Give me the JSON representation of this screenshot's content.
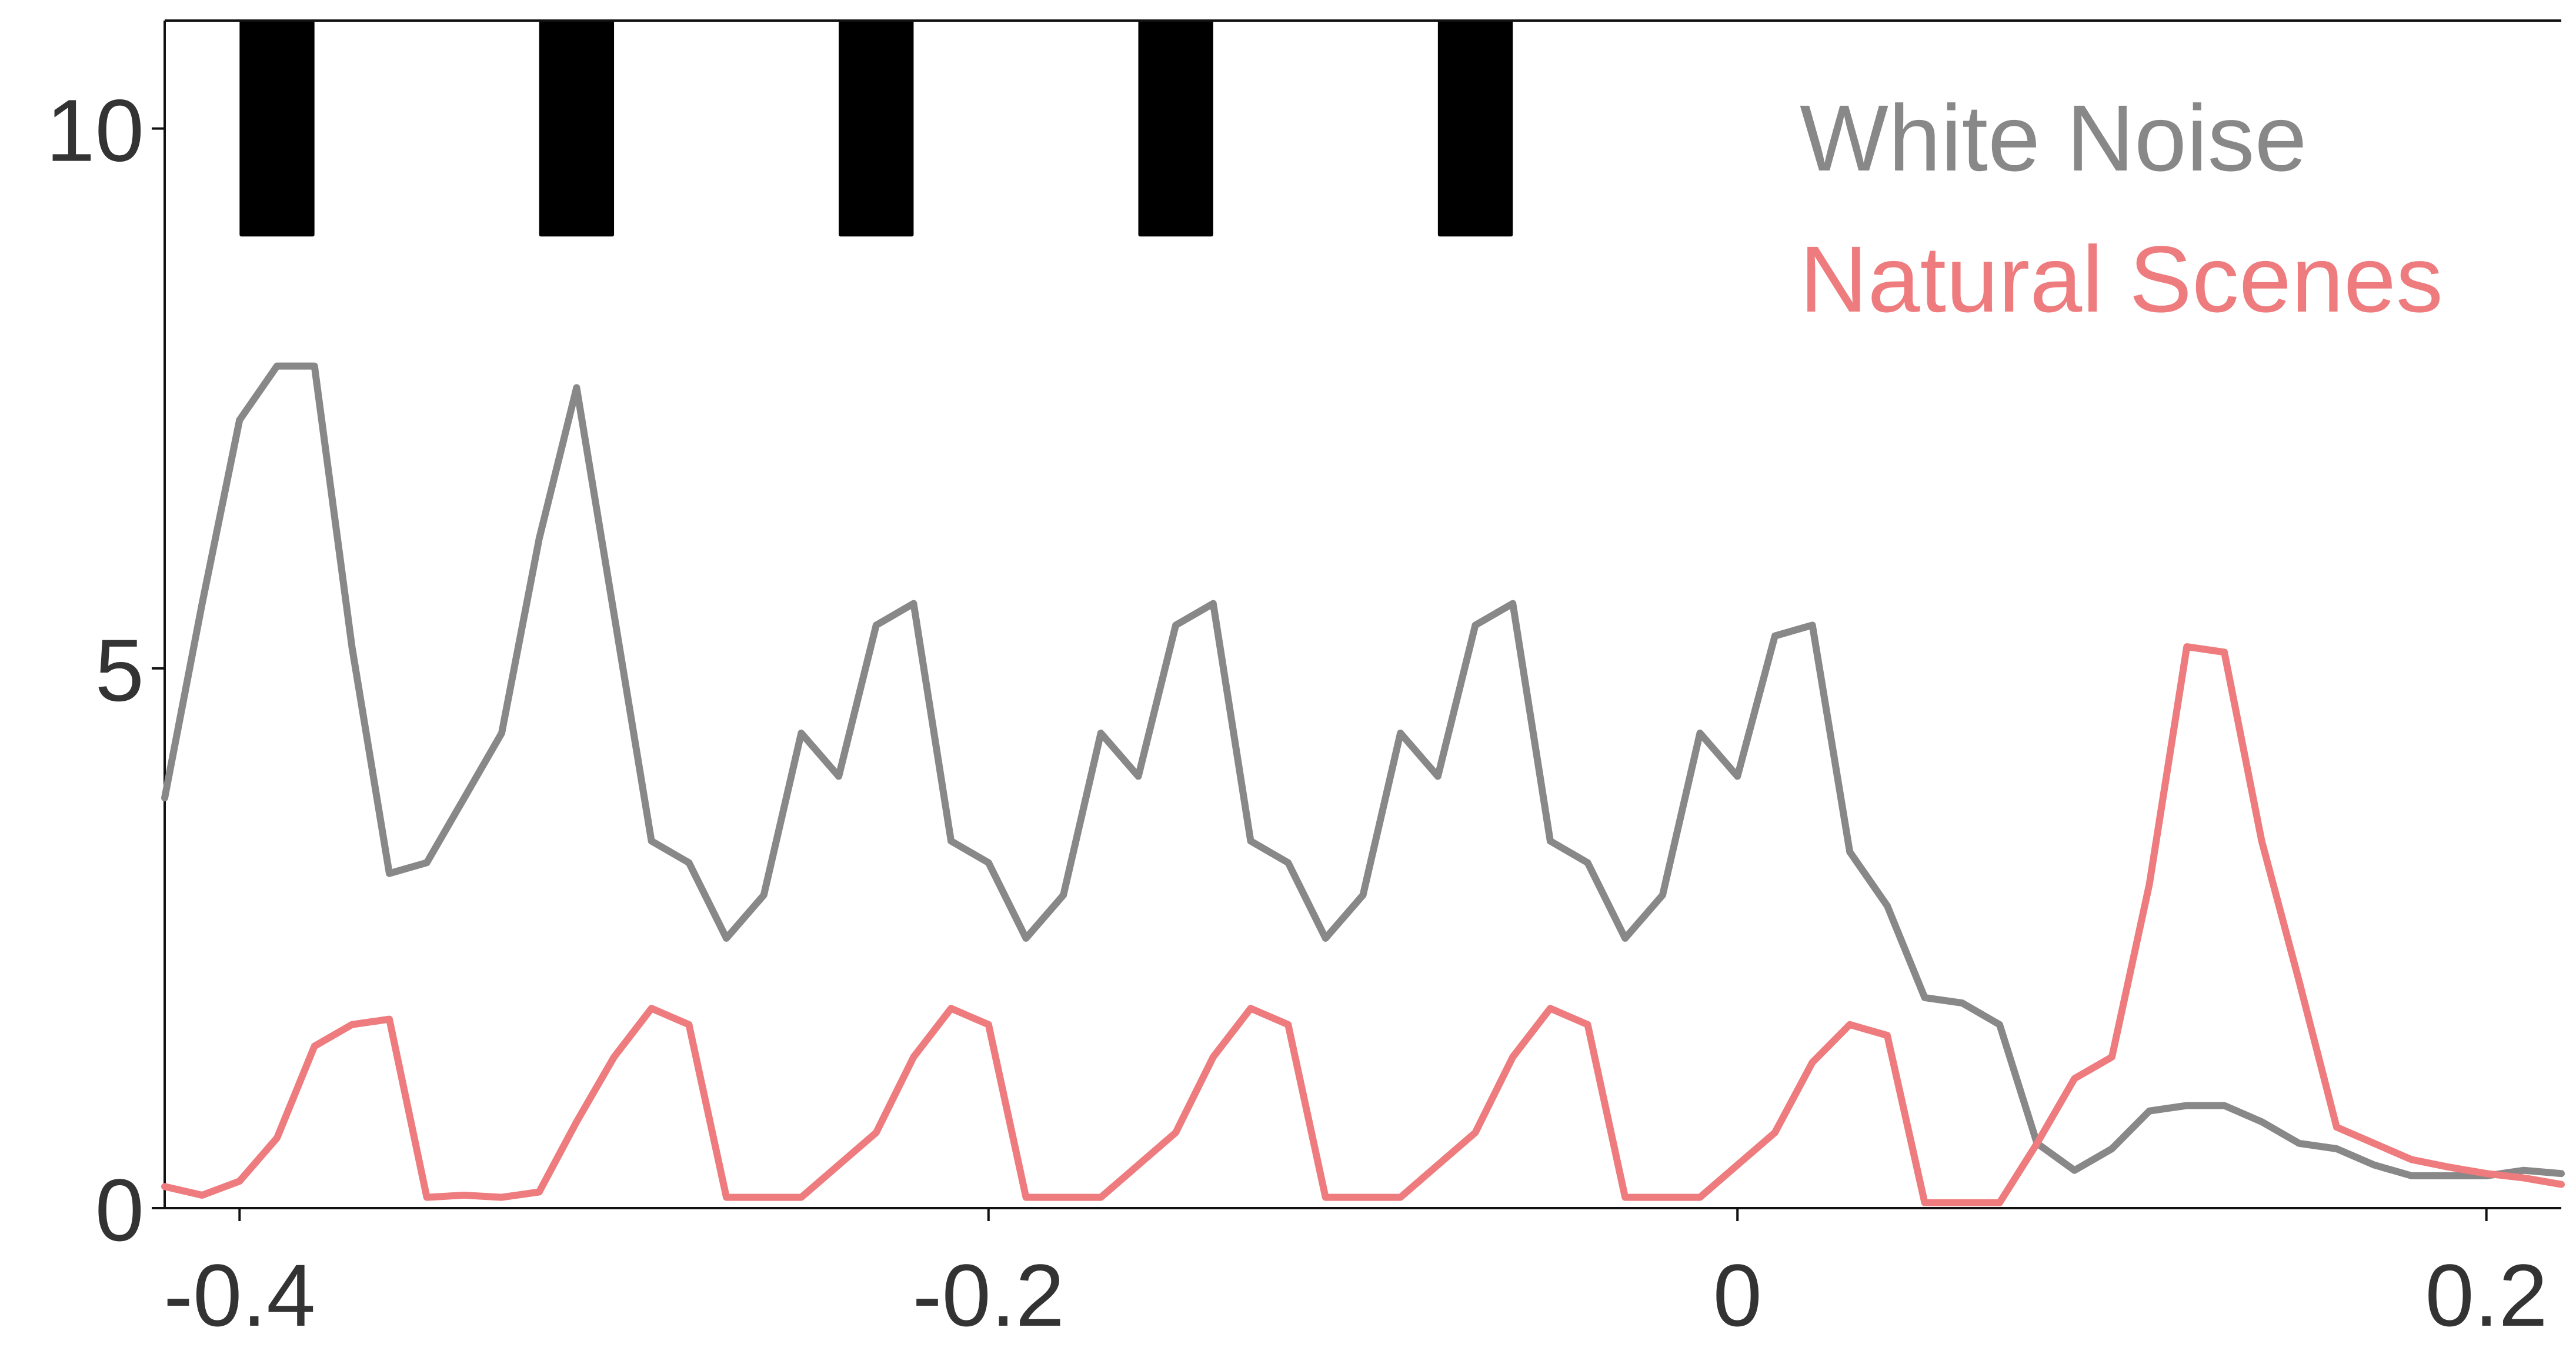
{
  "chart_data": {
    "type": "line",
    "title": "",
    "xlabel": "",
    "ylabel": "",
    "xlim": [
      -0.42,
      0.22
    ],
    "ylim": [
      0,
      11
    ],
    "x_ticks": [
      -0.4,
      -0.2,
      0,
      0.2
    ],
    "x_tick_labels": [
      "-0.4",
      "-0.2",
      "0",
      "0.2"
    ],
    "y_ticks": [
      0,
      5,
      10
    ],
    "y_tick_labels": [
      "0",
      "5",
      "10"
    ],
    "grid": false,
    "legend_position": "top-right",
    "stimulus_bars": {
      "color": "#000000",
      "y_range": [
        9.0,
        11.0
      ],
      "intervals": [
        [
          -0.4,
          -0.38
        ],
        [
          -0.32,
          -0.3
        ],
        [
          -0.24,
          -0.22
        ],
        [
          -0.16,
          -0.14
        ],
        [
          -0.08,
          -0.06
        ]
      ]
    },
    "series": [
      {
        "name": "White Noise",
        "color": "#888888",
        "x": [
          -0.42,
          -0.41,
          -0.4,
          -0.39,
          -0.38,
          -0.37,
          -0.36,
          -0.35,
          -0.34,
          -0.33,
          -0.32,
          -0.31,
          -0.3,
          -0.29,
          -0.28,
          -0.27,
          -0.26,
          -0.25,
          -0.24,
          -0.23,
          -0.22,
          -0.21,
          -0.2,
          -0.19,
          -0.18,
          -0.17,
          -0.16,
          -0.15,
          -0.14,
          -0.13,
          -0.12,
          -0.11,
          -0.1,
          -0.09,
          -0.08,
          -0.07,
          -0.06,
          -0.05,
          -0.04,
          -0.03,
          -0.02,
          -0.01,
          0.0,
          0.01,
          0.02,
          0.03,
          0.04,
          0.05,
          0.06,
          0.07,
          0.08,
          0.09,
          0.1,
          0.11,
          0.12,
          0.13,
          0.14,
          0.15,
          0.16,
          0.17,
          0.18,
          0.19,
          0.2,
          0.21,
          0.22
        ],
        "values": [
          3.8,
          5.6,
          7.3,
          7.8,
          7.8,
          5.2,
          3.1,
          3.2,
          3.8,
          4.4,
          6.2,
          7.6,
          5.5,
          3.4,
          3.2,
          2.5,
          2.9,
          4.4,
          4.0,
          5.4,
          5.6,
          3.4,
          3.2,
          2.5,
          2.9,
          4.4,
          4.0,
          5.4,
          5.6,
          3.4,
          3.2,
          2.5,
          2.9,
          4.4,
          4.0,
          5.4,
          5.6,
          3.4,
          3.2,
          2.5,
          2.9,
          4.4,
          4.0,
          5.3,
          5.4,
          3.3,
          2.8,
          1.95,
          1.9,
          1.7,
          0.6,
          0.35,
          0.55,
          0.9,
          0.95,
          0.95,
          0.8,
          0.6,
          0.55,
          0.4,
          0.3,
          0.3,
          0.3,
          0.35,
          0.32
        ]
      },
      {
        "name": "Natural Scenes",
        "color": "#EE7B7D",
        "x": [
          -0.42,
          -0.41,
          -0.4,
          -0.39,
          -0.38,
          -0.37,
          -0.36,
          -0.35,
          -0.34,
          -0.33,
          -0.32,
          -0.31,
          -0.3,
          -0.29,
          -0.28,
          -0.27,
          -0.26,
          -0.25,
          -0.24,
          -0.23,
          -0.22,
          -0.21,
          -0.2,
          -0.19,
          -0.18,
          -0.17,
          -0.16,
          -0.15,
          -0.14,
          -0.13,
          -0.12,
          -0.11,
          -0.1,
          -0.09,
          -0.08,
          -0.07,
          -0.06,
          -0.05,
          -0.04,
          -0.03,
          -0.02,
          -0.01,
          0.0,
          0.01,
          0.02,
          0.03,
          0.04,
          0.05,
          0.06,
          0.07,
          0.08,
          0.09,
          0.1,
          0.11,
          0.12,
          0.13,
          0.14,
          0.15,
          0.16,
          0.17,
          0.18,
          0.19,
          0.2,
          0.21,
          0.22
        ],
        "values": [
          0.2,
          0.12,
          0.25,
          0.65,
          1.5,
          1.7,
          1.75,
          0.1,
          0.12,
          0.1,
          0.15,
          0.8,
          1.4,
          1.85,
          1.7,
          0.1,
          0.1,
          0.1,
          0.4,
          0.7,
          1.4,
          1.85,
          1.7,
          0.1,
          0.1,
          0.1,
          0.4,
          0.7,
          1.4,
          1.85,
          1.7,
          0.1,
          0.1,
          0.1,
          0.4,
          0.7,
          1.4,
          1.85,
          1.7,
          0.1,
          0.1,
          0.1,
          0.4,
          0.7,
          1.35,
          1.7,
          1.6,
          0.05,
          0.05,
          0.05,
          0.6,
          1.2,
          1.4,
          3.0,
          5.2,
          5.15,
          3.4,
          2.1,
          0.75,
          0.6,
          0.45,
          0.38,
          0.32,
          0.28,
          0.22
        ]
      }
    ]
  }
}
